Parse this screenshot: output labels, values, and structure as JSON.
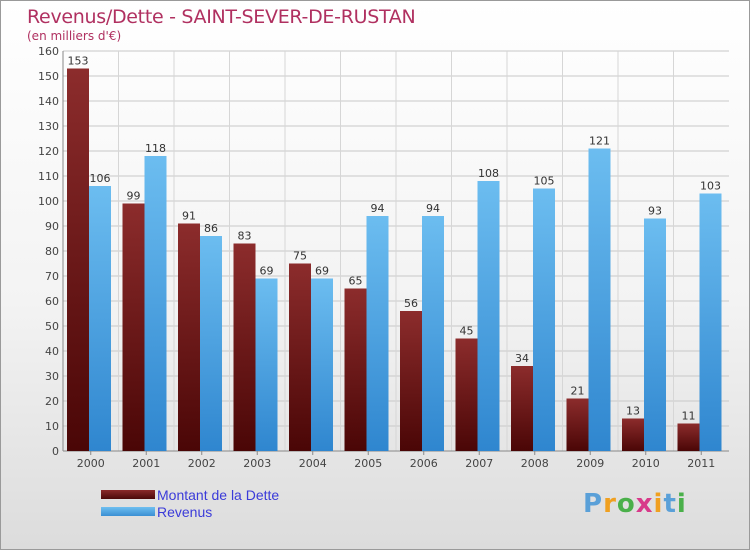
{
  "chart_data": {
    "type": "bar",
    "title": "Revenus/Dette - SAINT-SEVER-DE-RUSTAN",
    "subtitle": "(en milliers d'€)",
    "xlabel": "",
    "ylabel": "",
    "ylim": [
      0,
      160
    ],
    "yticks": [
      0,
      10,
      20,
      30,
      40,
      50,
      60,
      70,
      80,
      90,
      100,
      110,
      120,
      130,
      140,
      150,
      160
    ],
    "grid": true,
    "legend_position": "bottom-left",
    "categories": [
      "2000",
      "2001",
      "2002",
      "2003",
      "2004",
      "2005",
      "2006",
      "2007",
      "2008",
      "2009",
      "2010",
      "2011"
    ],
    "series": [
      {
        "name": "Montant de la Dette",
        "color": "#6e1a1a",
        "values": [
          153,
          99,
          91,
          83,
          75,
          65,
          56,
          45,
          34,
          21,
          13,
          11
        ]
      },
      {
        "name": "Revenus",
        "color": "#4aa3e6",
        "values": [
          106,
          118,
          86,
          69,
          69,
          94,
          94,
          108,
          105,
          121,
          93,
          103
        ]
      }
    ]
  },
  "logo": {
    "letters": [
      "P",
      "r",
      "o",
      "x",
      "i",
      "t",
      "i"
    ],
    "colors": [
      "#5aa0d8",
      "#f0a020",
      "#4ab04a",
      "#d83a8a",
      "#f0a020",
      "#5aa0d8",
      "#4ab04a"
    ]
  }
}
